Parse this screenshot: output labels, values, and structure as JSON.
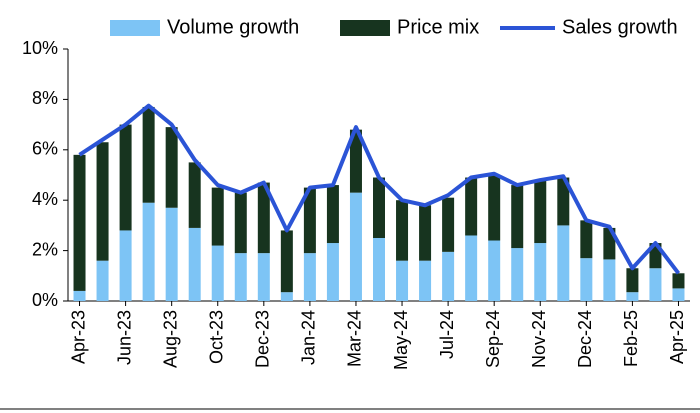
{
  "chart_data": {
    "type": "bar",
    "stacked": true,
    "categories": [
      "Apr-23",
      null,
      "Jun-23",
      null,
      "Aug-23",
      null,
      "Oct-23",
      null,
      "Dec-23",
      null,
      "Jan-24",
      null,
      "Mar-24",
      null,
      "May-24",
      null,
      "Jul-24",
      null,
      "Sep-24",
      null,
      "Nov-24",
      null,
      "Dec-24",
      null,
      "Feb-25",
      null,
      "Apr-25"
    ],
    "series": [
      {
        "name": "Volume growth",
        "type": "bar",
        "color": "#7dc4f5",
        "values": [
          0.4,
          1.6,
          2.8,
          3.9,
          3.7,
          2.9,
          2.2,
          1.9,
          1.9,
          0.35,
          1.9,
          2.3,
          4.3,
          2.5,
          1.6,
          1.6,
          1.95,
          2.6,
          2.4,
          2.1,
          2.3,
          3.0,
          1.7,
          1.65,
          0.35,
          1.3,
          0.5
        ]
      },
      {
        "name": "Price mix",
        "type": "bar",
        "color": "#17341f",
        "values": [
          5.4,
          4.7,
          4.2,
          3.8,
          3.2,
          2.6,
          2.3,
          2.4,
          2.8,
          2.45,
          2.6,
          2.3,
          2.5,
          2.4,
          2.4,
          2.2,
          2.15,
          2.3,
          2.6,
          2.5,
          2.5,
          1.9,
          1.5,
          1.25,
          0.95,
          1.0,
          0.6
        ]
      },
      {
        "name": "Sales growth",
        "type": "line",
        "color": "#2b54d6",
        "values": [
          5.8,
          6.4,
          7.0,
          7.75,
          7.0,
          5.6,
          4.6,
          4.3,
          4.7,
          2.8,
          4.5,
          4.6,
          6.9,
          4.9,
          4.0,
          3.8,
          4.2,
          4.9,
          5.05,
          4.6,
          4.8,
          4.95,
          3.2,
          2.95,
          1.3,
          2.3,
          1.1
        ]
      }
    ],
    "ylim": [
      0,
      10
    ],
    "yticks": [
      {
        "value": 0,
        "label": "0%"
      },
      {
        "value": 2,
        "label": "2%"
      },
      {
        "value": 4,
        "label": "4%"
      },
      {
        "value": 6,
        "label": "6%"
      },
      {
        "value": 8,
        "label": "8%"
      },
      {
        "value": 10,
        "label": "10%"
      }
    ],
    "legend": "top"
  }
}
